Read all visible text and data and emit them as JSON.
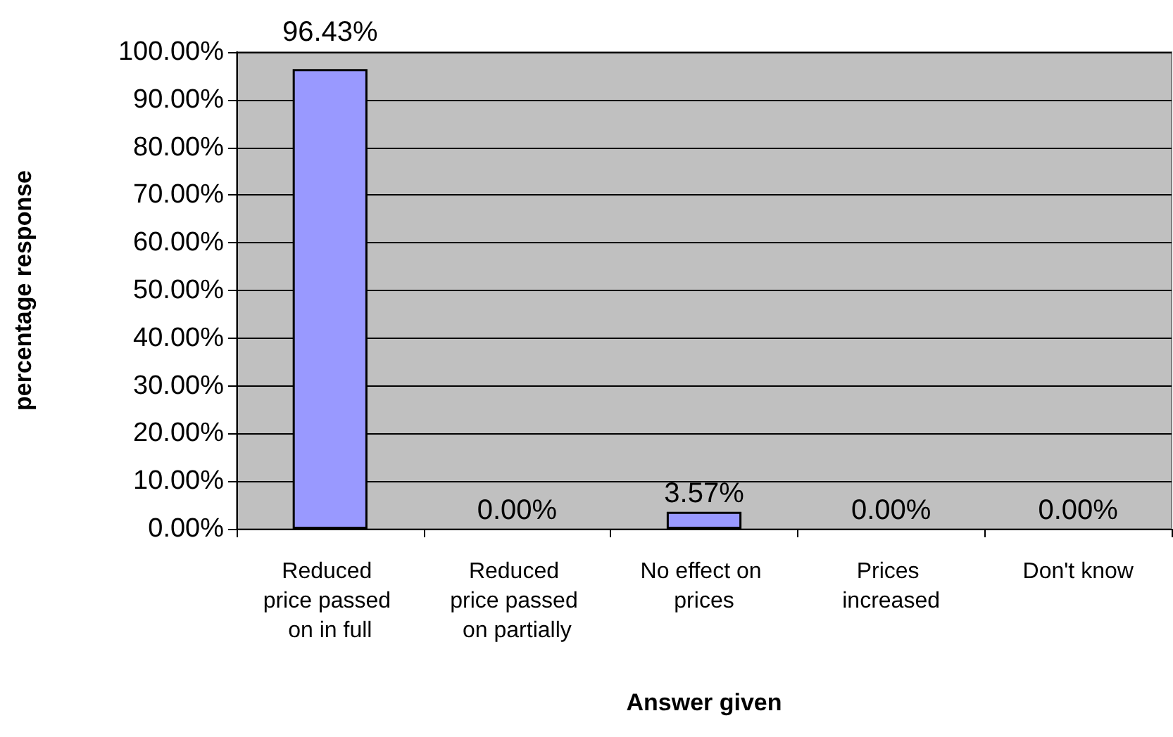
{
  "chart_data": {
    "type": "bar",
    "xlabel": "Answer given",
    "ylabel": "percentage response",
    "categories": [
      "Reduced price passed on in full",
      "Reduced price passed on partially",
      "No effect on prices",
      "Prices increased",
      "Don't know"
    ],
    "values": [
      96.43,
      0,
      3.57,
      0,
      0
    ],
    "value_labels": [
      "96.43%",
      "0.00%",
      "3.57%",
      "0.00%",
      "0.00%"
    ],
    "color": "#9999ff",
    "ylim": [
      0,
      100
    ],
    "yticks": [
      {
        "value": 0,
        "label": "0.00%"
      },
      {
        "value": 10,
        "label": "10.00%"
      },
      {
        "value": 20,
        "label": "20.00%"
      },
      {
        "value": 30,
        "label": "30.00%"
      },
      {
        "value": 40,
        "label": "40.00%"
      },
      {
        "value": 50,
        "label": "50.00%"
      },
      {
        "value": 60,
        "label": "60.00%"
      },
      {
        "value": 70,
        "label": "70.00%"
      },
      {
        "value": 80,
        "label": "80.00%"
      },
      {
        "value": 90,
        "label": "90.00%"
      },
      {
        "value": 100,
        "label": "100.00%"
      }
    ],
    "grid": "y"
  }
}
